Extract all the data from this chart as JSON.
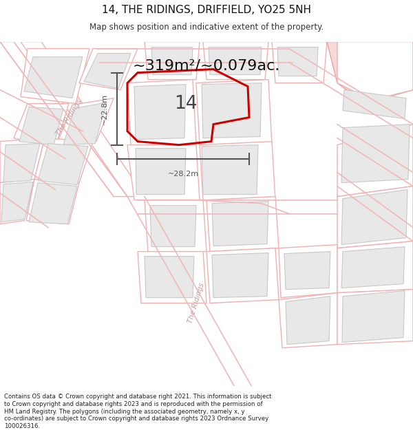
{
  "title": "14, THE RIDINGS, DRIFFIELD, YO25 5NH",
  "subtitle": "Map shows position and indicative extent of the property.",
  "area_text": "~319m²/~0.079ac.",
  "footer_lines": [
    "Contains OS data © Crown copyright and database right 2021. This information is subject",
    "to Crown copyright and database rights 2023 and is reproduced with the permission of",
    "HM Land Registry. The polygons (including the associated geometry, namely x, y",
    "co-ordinates) are subject to Crown copyright and database rights 2023 Ordnance Survey",
    "100026316."
  ],
  "map_bg": "#ffffff",
  "page_bg": "#ffffff",
  "building_fill": "#e8e8e8",
  "building_stroke": "#c8c8c8",
  "road_color": "#f0b8b8",
  "parcel_stroke": "#f0b0b0",
  "parcel_fill": "#ffffff",
  "property_stroke": "#cc0000",
  "dim_color": "#555555",
  "street_label_color": "#c0a0a0",
  "label14_color": "#444444",
  "pink_fill": "#f5d8d8",
  "pink_stroke": "#e8a0a0"
}
